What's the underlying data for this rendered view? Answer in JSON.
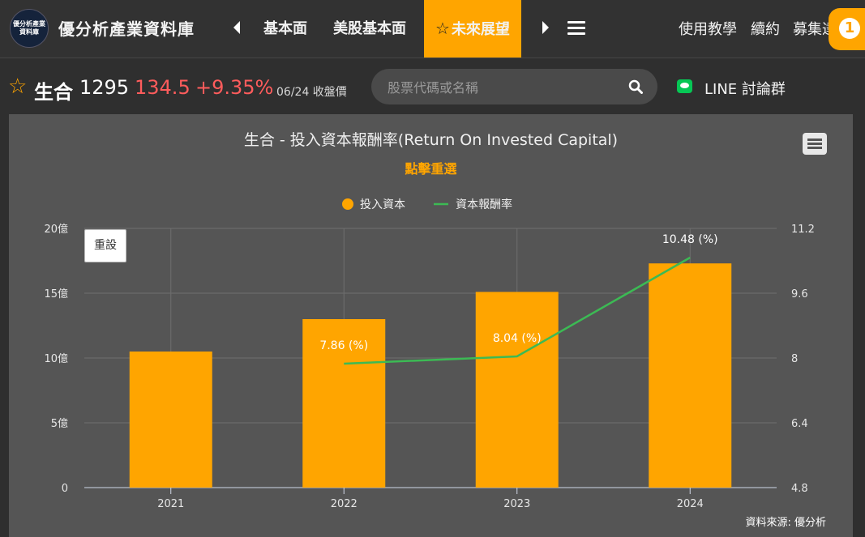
{
  "header": {
    "logo_text": "優分析產業資料庫",
    "brand": "優分析產業資料庫",
    "nav": [
      "基本面",
      "美股基本面",
      "未來展望"
    ],
    "active_star": "☆",
    "right_links": [
      "使用教學",
      "續約",
      "募集達人"
    ]
  },
  "stock": {
    "star": "☆",
    "name": "生合",
    "code": "1295",
    "price": "134.5",
    "change": "+9.35%",
    "date": "06/24 收盤價"
  },
  "search": {
    "placeholder": "股票代碼或名稱"
  },
  "line_group": {
    "label": "LINE 討論群"
  },
  "badge": {
    "label": "1"
  },
  "chart_panel": {
    "reset_label": "重設",
    "source": "資料來源: 優分析"
  },
  "colors": {
    "accent": "#ffa500",
    "line_series": "#3cba54",
    "price_up": "#ff5c5c",
    "panel": "#555555"
  },
  "chart_data": {
    "type": "bar+line",
    "title": "生合 - 投入資本報酬率(Return On Invested Capital)",
    "subtitle": "點擊重選",
    "categories": [
      "2021",
      "2022",
      "2023",
      "2024"
    ],
    "series": [
      {
        "name": "投入資本",
        "type": "bar",
        "axis": "left",
        "values": [
          10.5,
          13.0,
          15.1,
          17.3
        ]
      },
      {
        "name": "資本報酬率",
        "type": "line",
        "axis": "right",
        "values": [
          null,
          7.86,
          8.04,
          10.48
        ],
        "labels": [
          "",
          "7.86 (%)",
          "8.04 (%)",
          "10.48 (%)"
        ]
      }
    ],
    "y_left": {
      "min": 0,
      "max": 20,
      "ticks": [
        0,
        5,
        10,
        15,
        20
      ],
      "tick_labels": [
        "0",
        "5億",
        "10億",
        "15億",
        "20億"
      ]
    },
    "y_right": {
      "min": 4.8,
      "max": 11.2,
      "ticks": [
        4.8,
        6.4,
        8,
        9.6,
        11.2
      ],
      "tick_labels": [
        "4.8",
        "6.4",
        "8",
        "9.6",
        "11.2"
      ]
    },
    "legend": {
      "position": "top-center",
      "items": [
        "投入資本",
        "資本報酬率"
      ]
    },
    "grid": true
  }
}
